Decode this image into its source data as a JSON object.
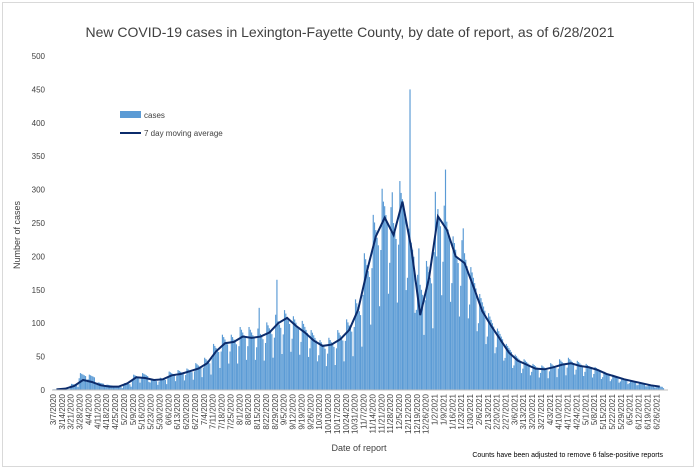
{
  "chart_data": {
    "type": "bar",
    "title": "New COVID-19 cases in Lexington-Fayette County, by date of report, as of 6/28/2021",
    "xlabel": "Date of report",
    "ylabel": "Number of cases",
    "ylim": [
      0,
      500
    ],
    "yticks": [
      "0",
      "50",
      "100",
      "150",
      "200",
      "250",
      "300",
      "350",
      "400",
      "450",
      "500"
    ],
    "note": "Counts have been adjusted to remove 6 false-positive reports",
    "grid": false,
    "legend_position": "upper-left",
    "categories": [
      "3/7/2020",
      "3/14/2020",
      "3/21/2020",
      "3/28/2020",
      "4/4/2020",
      "4/11/2020",
      "4/18/2020",
      "4/25/2020",
      "5/2/2020",
      "5/9/2020",
      "5/16/2020",
      "5/23/2020",
      "5/30/2020",
      "6/6/2020",
      "6/13/2020",
      "6/20/2020",
      "6/27/2020",
      "7/4/2020",
      "7/11/2020",
      "7/18/2020",
      "7/25/2020",
      "8/1/2020",
      "8/8/2020",
      "8/15/2020",
      "8/22/2020",
      "8/29/2020",
      "9/5/2020",
      "9/12/2020",
      "9/19/2020",
      "9/26/2020",
      "10/3/2020",
      "10/10/2020",
      "10/17/2020",
      "10/24/2020",
      "10/31/2020",
      "11/7/2020",
      "11/14/2020",
      "11/21/2020",
      "11/28/2020",
      "12/5/2020",
      "12/12/2020",
      "12/19/2020",
      "12/26/2020",
      "1/2/2021",
      "1/9/2021",
      "1/16/2021",
      "1/23/2021",
      "1/30/2021",
      "2/6/2021",
      "2/13/2021",
      "2/20/2021",
      "2/27/2021",
      "3/6/2021",
      "3/13/2021",
      "3/20/2021",
      "3/27/2021",
      "4/3/2021",
      "4/10/2021",
      "4/17/2021",
      "4/24/2021",
      "5/1/2021",
      "5/8/2021",
      "5/15/2021",
      "5/22/2021",
      "5/29/2021",
      "6/5/2021",
      "6/12/2021",
      "6/19/2021",
      "6/26/2021"
    ],
    "series": [
      {
        "name": "cases",
        "color": "#5b9bd5",
        "values": [
          1,
          2,
          8,
          22,
          20,
          10,
          7,
          5,
          9,
          20,
          22,
          14,
          16,
          24,
          26,
          28,
          35,
          42,
          60,
          72,
          72,
          82,
          82,
          80,
          88,
          98,
          104,
          96,
          90,
          78,
          65,
          68,
          78,
          92,
          118,
          178,
          228,
          262,
          238,
          272,
          210,
          150,
          168,
          258,
          240,
          200,
          195,
          160,
          125,
          100,
          80,
          60,
          46,
          40,
          34,
          32,
          35,
          40,
          42,
          38,
          34,
          30,
          24,
          20,
          16,
          13,
          10,
          7,
          5
        ],
        "spikes": [
          [
            23,
            123
          ],
          [
            25,
            165
          ],
          [
            37,
            282
          ],
          [
            38,
            296
          ],
          [
            39,
            295
          ],
          [
            40,
            450
          ],
          [
            41,
            212
          ],
          [
            43,
            200
          ],
          [
            44,
            330
          ],
          [
            46,
            242
          ]
        ]
      },
      {
        "name": "7 day moving average",
        "color": "#0b2b6b",
        "values": [
          1,
          2,
          6,
          15,
          12,
          7,
          5,
          5,
          10,
          19,
          18,
          15,
          16,
          22,
          24,
          28,
          32,
          40,
          58,
          70,
          72,
          80,
          78,
          80,
          86,
          100,
          108,
          96,
          86,
          74,
          66,
          68,
          76,
          90,
          120,
          178,
          230,
          258,
          232,
          282,
          212,
          112,
          168,
          260,
          240,
          200,
          190,
          155,
          118,
          96,
          76,
          56,
          44,
          38,
          32,
          31,
          34,
          38,
          40,
          36,
          34,
          30,
          24,
          20,
          16,
          13,
          10,
          7,
          5
        ]
      }
    ]
  }
}
